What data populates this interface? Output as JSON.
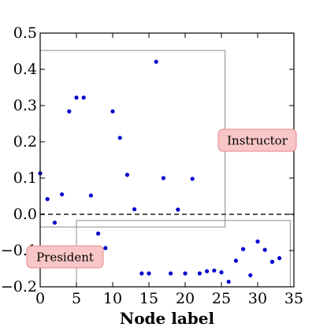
{
  "chart_data": {
    "type": "scatter",
    "title": "",
    "xlabel": "Node label",
    "ylabel": "",
    "xlim": [
      0,
      35
    ],
    "ylim": [
      -0.2,
      0.5
    ],
    "xticks": [
      0,
      5,
      10,
      15,
      20,
      25,
      30,
      35
    ],
    "yticks": [
      -0.2,
      -0.1,
      0.0,
      0.1,
      0.2,
      0.3,
      0.4,
      0.5
    ],
    "ytick_labels": [
      "−0.2",
      "−0.1",
      "0.0",
      "0.1",
      "0.2",
      "0.3",
      "0.4",
      "0.5"
    ],
    "grid": false,
    "marker_color": "#0000cc",
    "series": [
      {
        "x": [
          0,
          1,
          2,
          3,
          4,
          5,
          6,
          7,
          8,
          9,
          10,
          11,
          12,
          13,
          14,
          15,
          16,
          17,
          18,
          19,
          20,
          21,
          22,
          23,
          24,
          25,
          26,
          27,
          28,
          29,
          30,
          31,
          32,
          33
        ],
        "values": [
          0.113,
          0.042,
          -0.023,
          0.055,
          0.284,
          0.322,
          0.322,
          0.052,
          -0.053,
          -0.093,
          0.284,
          0.211,
          0.109,
          0.014,
          -0.163,
          -0.163,
          0.421,
          0.1,
          -0.163,
          0.013,
          -0.163,
          0.098,
          -0.163,
          -0.157,
          -0.155,
          -0.16,
          -0.186,
          -0.128,
          -0.096,
          -0.168,
          -0.075,
          -0.098,
          -0.131,
          -0.121
        ]
      }
    ],
    "reference_line": {
      "y": 0.0,
      "style": "dashed",
      "color": "#555555"
    },
    "regions": [
      {
        "x": [
          0,
          25.5
        ],
        "y": [
          -0.035,
          0.452
        ]
      },
      {
        "x": [
          5,
          34.5
        ],
        "y": [
          -0.2,
          -0.017
        ]
      }
    ],
    "annotations": [
      {
        "text": "Instructor",
        "box_color": "#f8c6c6",
        "border_color": "#e88888"
      },
      {
        "text": "President",
        "box_color": "#f8c6c6",
        "border_color": "#e88888"
      }
    ]
  }
}
